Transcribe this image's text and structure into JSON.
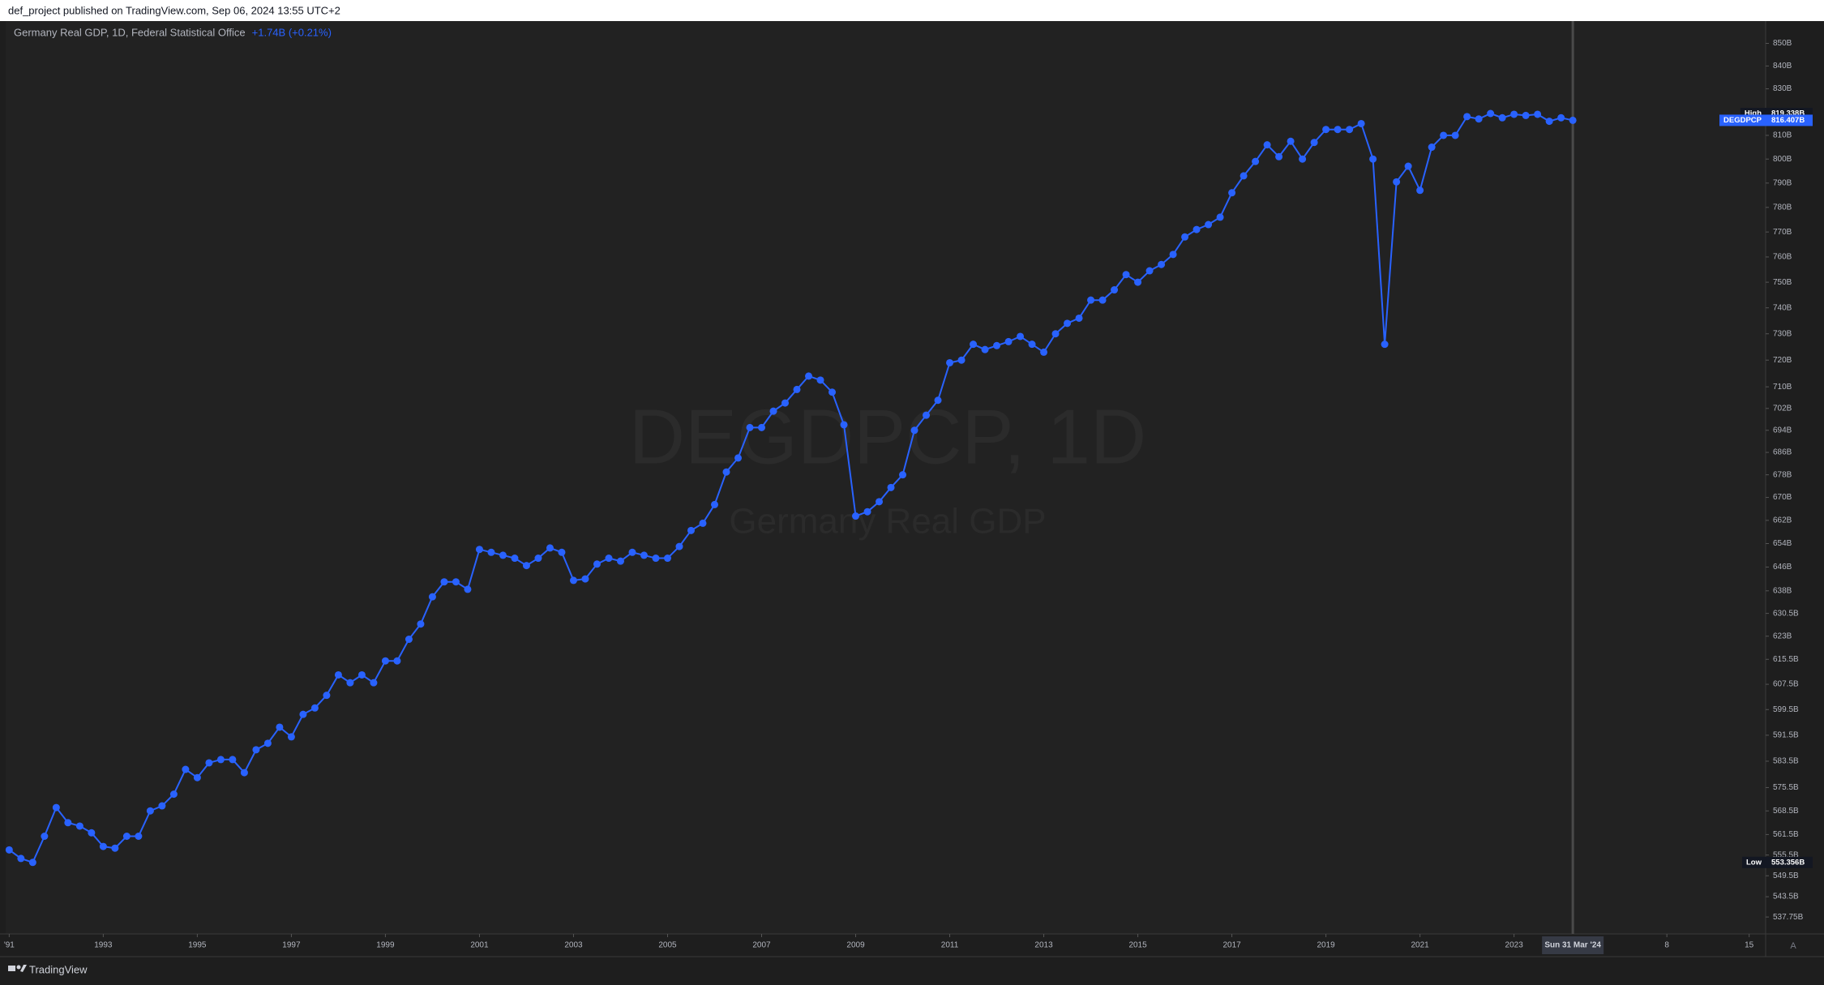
{
  "header": {
    "text": "def_project published on TradingView.com, Sep 06, 2024 13:55 UTC+2"
  },
  "chart_data": {
    "type": "line",
    "title": "Germany Real GDP, 1D, Federal Statistical Office",
    "change": "+1.74B (+0.21%)",
    "watermark": "DEGDPCP, 1D",
    "watermark_subtitle": "Germany Real GDP",
    "color": "#2962ff",
    "values": [
      557,
      554.5,
      553.356,
      561,
      569.5,
      565,
      564,
      562,
      558,
      557.5,
      561,
      561,
      568.5,
      570,
      573.5,
      581,
      578.5,
      583,
      584,
      584,
      580,
      587,
      589,
      594,
      591,
      598,
      600,
      604,
      610.5,
      608,
      610.5,
      608,
      615,
      615,
      622,
      627,
      636,
      641,
      641,
      638.5,
      652,
      651,
      650,
      649,
      646.5,
      649,
      652.5,
      651,
      641.5,
      642,
      647,
      649,
      648,
      651,
      650,
      649,
      649,
      653,
      658.5,
      661,
      667.5,
      679,
      684,
      695,
      695,
      701,
      704,
      709,
      714,
      712.5,
      708,
      696,
      663.5,
      665,
      668.5,
      673.5,
      678,
      694,
      699.5,
      705,
      719,
      720,
      726,
      724,
      725.5,
      727,
      729,
      726,
      723,
      730,
      734,
      736,
      743,
      743,
      747,
      753,
      750,
      754.5,
      757,
      761,
      768,
      771,
      773,
      776,
      786,
      793,
      799,
      806,
      801,
      807.5,
      800,
      807,
      812.5,
      812.5,
      812.5,
      815,
      800,
      726,
      790.5,
      797,
      787,
      805,
      810,
      810,
      818,
      817,
      819.338,
      817.5,
      819,
      818.5,
      819,
      816,
      817.5,
      816.407
    ],
    "log_scale": true,
    "grid": false,
    "ylim": [
      533,
      860
    ],
    "yticks": [
      {
        "value": 850,
        "label": "850B"
      },
      {
        "value": 840,
        "label": "840B"
      },
      {
        "value": 830,
        "label": "830B"
      },
      {
        "value": 810,
        "label": "810B"
      },
      {
        "value": 800,
        "label": "800B"
      },
      {
        "value": 790,
        "label": "790B"
      },
      {
        "value": 780,
        "label": "780B"
      },
      {
        "value": 770,
        "label": "770B"
      },
      {
        "value": 760,
        "label": "760B"
      },
      {
        "value": 750,
        "label": "750B"
      },
      {
        "value": 740,
        "label": "740B"
      },
      {
        "value": 730,
        "label": "730B"
      },
      {
        "value": 720,
        "label": "720B"
      },
      {
        "value": 710,
        "label": "710B"
      },
      {
        "value": 702,
        "label": "702B"
      },
      {
        "value": 694,
        "label": "694B"
      },
      {
        "value": 686,
        "label": "686B"
      },
      {
        "value": 678,
        "label": "678B"
      },
      {
        "value": 670,
        "label": "670B"
      },
      {
        "value": 662,
        "label": "662B"
      },
      {
        "value": 654,
        "label": "654B"
      },
      {
        "value": 646,
        "label": "646B"
      },
      {
        "value": 638,
        "label": "638B"
      },
      {
        "value": 630.5,
        "label": "630.5B"
      },
      {
        "value": 623,
        "label": "623B"
      },
      {
        "value": 615.5,
        "label": "615.5B"
      },
      {
        "value": 607.5,
        "label": "607.5B"
      },
      {
        "value": 599.5,
        "label": "599.5B"
      },
      {
        "value": 591.5,
        "label": "591.5B"
      },
      {
        "value": 583.5,
        "label": "583.5B"
      },
      {
        "value": 575.5,
        "label": "575.5B"
      },
      {
        "value": 568.5,
        "label": "568.5B"
      },
      {
        "value": 561.5,
        "label": "561.5B"
      },
      {
        "value": 555.5,
        "label": "555.5B"
      },
      {
        "value": 549.5,
        "label": "549.5B"
      },
      {
        "value": 543.5,
        "label": "543.5B"
      },
      {
        "value": 537.75,
        "label": "537.75B"
      }
    ],
    "xlim": [
      -0.3,
      149.4
    ],
    "xticks": [
      {
        "value": 0,
        "label": "'91"
      },
      {
        "value": 8,
        "label": "1993"
      },
      {
        "value": 16,
        "label": "1995"
      },
      {
        "value": 24,
        "label": "1997"
      },
      {
        "value": 32,
        "label": "1999"
      },
      {
        "value": 40,
        "label": "2001"
      },
      {
        "value": 48,
        "label": "2003"
      },
      {
        "value": 56,
        "label": "2005"
      },
      {
        "value": 64,
        "label": "2007"
      },
      {
        "value": 72,
        "label": "2009"
      },
      {
        "value": 80,
        "label": "2011"
      },
      {
        "value": 88,
        "label": "2013"
      },
      {
        "value": 96,
        "label": "2015"
      },
      {
        "value": 104,
        "label": "2017"
      },
      {
        "value": 112,
        "label": "2019"
      },
      {
        "value": 120,
        "label": "2021"
      },
      {
        "value": 128,
        "label": "2023"
      },
      {
        "value": 141,
        "label": "8"
      },
      {
        "value": 148,
        "label": "15"
      }
    ],
    "crosshair": {
      "value": 133,
      "label": "Sun 31 Mar '24"
    },
    "price_labels": [
      {
        "name": "High",
        "value": 819.338,
        "label": "819.338B"
      },
      {
        "name": "DEGDPCP",
        "value": 816.407,
        "label": "816.407B"
      },
      {
        "name": "Low",
        "value": 553.356,
        "label": "553.356B"
      }
    ],
    "auto_button": "A"
  },
  "footer": {
    "brand": "TradingView"
  }
}
